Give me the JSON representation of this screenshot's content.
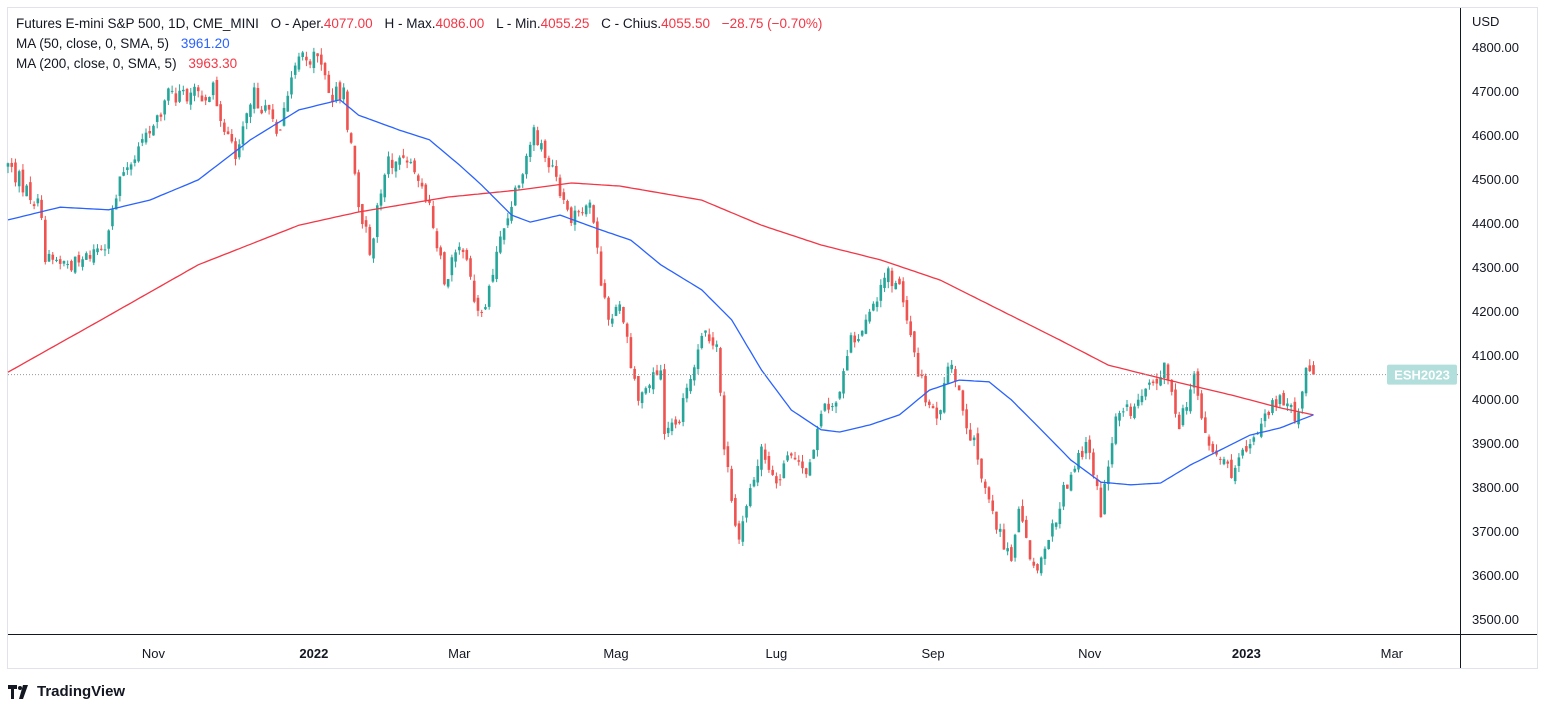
{
  "legend": {
    "symbol": "Futures E-mini S&P 500, 1D, CME_MINI",
    "open_label": "O - Aper.",
    "open": "4077.00",
    "high_label": "H - Max.",
    "high": "4086.00",
    "low_label": "L - Min.",
    "low": "4055.25",
    "close_label": "C - Chius.",
    "close": "4055.50",
    "change": "−28.75 (−0.70%)",
    "ma50_label": "MA (50, close, 0, SMA, 5)",
    "ma50_value": "3961.20",
    "ma200_label": "MA (200, close, 0, SMA, 5)",
    "ma200_value": "3963.30"
  },
  "branding": "TradingView",
  "colors": {
    "up": "#26a69a",
    "down": "#ef5350",
    "ma50": "#2962ff",
    "ma200": "#f23645",
    "price_tag": "#b2dfdb"
  },
  "chart_data": {
    "type": "candlestick",
    "x_unit": "trading-day index",
    "currency": "USD",
    "ylim": [
      3480,
      4830
    ],
    "xlim": [
      0,
      389
    ],
    "yticks": [
      "4800.00",
      "4700.00",
      "4600.00",
      "4500.00",
      "4400.00",
      "4300.00",
      "4200.00",
      "4100.00",
      "4000.00",
      "3900.00",
      "3800.00",
      "3700.00",
      "3600.00",
      "3500.00"
    ],
    "xticks": [
      {
        "i": 39,
        "label": "Nov",
        "bold": false
      },
      {
        "i": 82,
        "label": "2022",
        "bold": true
      },
      {
        "i": 121,
        "label": "Mar",
        "bold": false
      },
      {
        "i": 163,
        "label": "Mag",
        "bold": false
      },
      {
        "i": 206,
        "label": "Lug",
        "bold": false
      },
      {
        "i": 248,
        "label": "Sep",
        "bold": false
      },
      {
        "i": 290,
        "label": "Nov",
        "bold": false
      },
      {
        "i": 332,
        "label": "2023",
        "bold": true
      },
      {
        "i": 371,
        "label": "Mar",
        "bold": false
      }
    ],
    "close_path": [
      [
        0,
        4532
      ],
      [
        9,
        4430
      ],
      [
        10,
        4316
      ],
      [
        19,
        4305
      ],
      [
        26,
        4360
      ],
      [
        31,
        4520
      ],
      [
        38,
        4611
      ],
      [
        43,
        4690
      ],
      [
        50,
        4690
      ],
      [
        55,
        4700
      ],
      [
        61,
        4545
      ],
      [
        66,
        4690
      ],
      [
        73,
        4611
      ],
      [
        78,
        4782
      ],
      [
        84,
        4770
      ],
      [
        86,
        4690
      ],
      [
        90,
        4690
      ],
      [
        94,
        4450
      ],
      [
        97,
        4340
      ],
      [
        102,
        4545
      ],
      [
        108,
        4520
      ],
      [
        113,
        4430
      ],
      [
        117,
        4270
      ],
      [
        121,
        4360
      ],
      [
        127,
        4180
      ],
      [
        132,
        4360
      ],
      [
        135,
        4450
      ],
      [
        141,
        4611
      ],
      [
        147,
        4500
      ],
      [
        151,
        4420
      ],
      [
        156,
        4450
      ],
      [
        159,
        4270
      ],
      [
        161,
        4180
      ],
      [
        164,
        4225
      ],
      [
        169,
        4000
      ],
      [
        175,
        4070
      ],
      [
        176,
        3907
      ],
      [
        180,
        3950
      ],
      [
        186,
        4157
      ],
      [
        190,
        4134
      ],
      [
        192,
        3884
      ],
      [
        196,
        3680
      ],
      [
        202,
        3884
      ],
      [
        206,
        3816
      ],
      [
        210,
        3884
      ],
      [
        214,
        3816
      ],
      [
        218,
        3975
      ],
      [
        222,
        4000
      ],
      [
        226,
        4134
      ],
      [
        231,
        4180
      ],
      [
        235,
        4293
      ],
      [
        239,
        4250
      ],
      [
        242,
        4134
      ],
      [
        246,
        4000
      ],
      [
        249,
        3950
      ],
      [
        253,
        4089
      ],
      [
        257,
        3950
      ],
      [
        261,
        3838
      ],
      [
        265,
        3702
      ],
      [
        269,
        3634
      ],
      [
        271,
        3770
      ],
      [
        275,
        3611
      ],
      [
        279,
        3680
      ],
      [
        283,
        3793
      ],
      [
        289,
        3907
      ],
      [
        293,
        3748
      ],
      [
        297,
        3950
      ],
      [
        301,
        3975
      ],
      [
        306,
        4020
      ],
      [
        310,
        4066
      ],
      [
        314,
        3950
      ],
      [
        318,
        4043
      ],
      [
        322,
        3884
      ],
      [
        328,
        3838
      ],
      [
        333,
        3884
      ],
      [
        337,
        3975
      ],
      [
        342,
        4000
      ],
      [
        345,
        3950
      ],
      [
        348,
        4066
      ],
      [
        350,
        4055.5
      ]
    ],
    "last_bar": {
      "i": 350,
      "open": 4077.0,
      "high": 4086.0,
      "low": 4055.25,
      "close": 4055.5
    },
    "ma50": [
      [
        0,
        4407
      ],
      [
        14,
        4436
      ],
      [
        27,
        4430
      ],
      [
        38,
        4452
      ],
      [
        51,
        4498
      ],
      [
        65,
        4589
      ],
      [
        78,
        4657
      ],
      [
        89,
        4680
      ],
      [
        94,
        4645
      ],
      [
        105,
        4611
      ],
      [
        113,
        4589
      ],
      [
        121,
        4532
      ],
      [
        127,
        4486
      ],
      [
        135,
        4418
      ],
      [
        140,
        4402
      ],
      [
        148,
        4418
      ],
      [
        159,
        4384
      ],
      [
        167,
        4361
      ],
      [
        175,
        4305
      ],
      [
        186,
        4248
      ],
      [
        194,
        4180
      ],
      [
        202,
        4066
      ],
      [
        210,
        3975
      ],
      [
        218,
        3930
      ],
      [
        223,
        3925
      ],
      [
        231,
        3941
      ],
      [
        239,
        3964
      ],
      [
        247,
        4020
      ],
      [
        255,
        4043
      ],
      [
        263,
        4039
      ],
      [
        269,
        3998
      ],
      [
        277,
        3930
      ],
      [
        285,
        3861
      ],
      [
        293,
        3811
      ],
      [
        301,
        3805
      ],
      [
        309,
        3809
      ],
      [
        317,
        3850
      ],
      [
        325,
        3884
      ],
      [
        333,
        3918
      ],
      [
        341,
        3934
      ],
      [
        350,
        3964
      ]
    ],
    "ma200": [
      [
        0,
        4061
      ],
      [
        25,
        4180
      ],
      [
        51,
        4305
      ],
      [
        78,
        4395
      ],
      [
        94,
        4425
      ],
      [
        118,
        4459
      ],
      [
        137,
        4475
      ],
      [
        151,
        4491
      ],
      [
        164,
        4484
      ],
      [
        186,
        4452
      ],
      [
        202,
        4395
      ],
      [
        218,
        4350
      ],
      [
        234,
        4316
      ],
      [
        250,
        4270
      ],
      [
        266,
        4202
      ],
      [
        282,
        4134
      ],
      [
        295,
        4077
      ],
      [
        311,
        4043
      ],
      [
        328,
        4009
      ],
      [
        341,
        3980
      ],
      [
        350,
        3964
      ]
    ],
    "last_price_tag": "ESH2023"
  }
}
